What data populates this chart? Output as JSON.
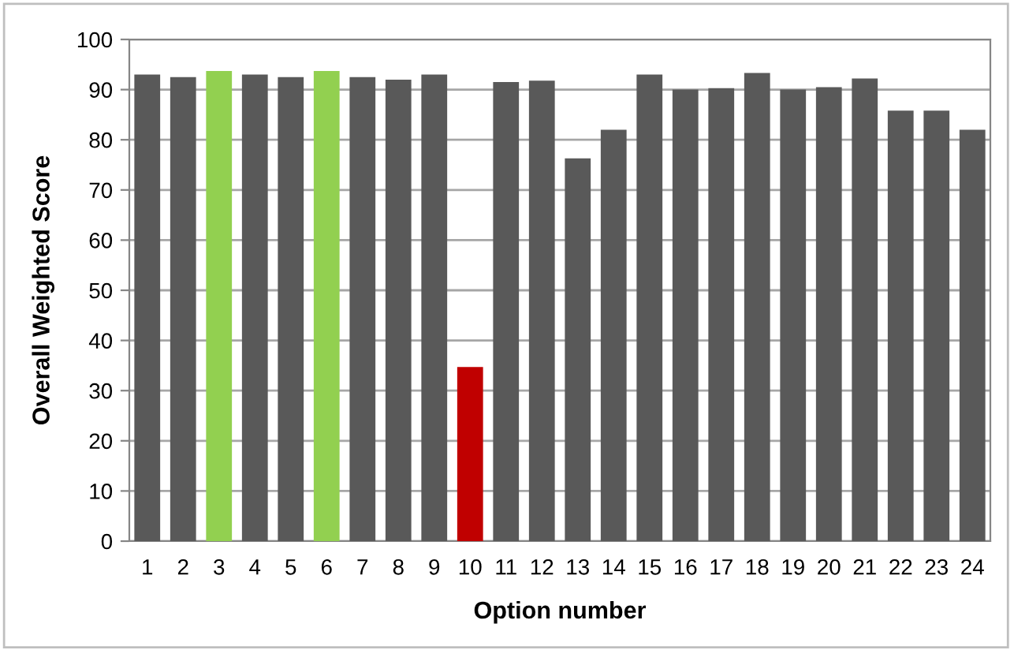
{
  "chart_data": {
    "type": "bar",
    "xlabel": "Option number",
    "ylabel": "Overall Weighted Score",
    "categories": [
      "1",
      "2",
      "3",
      "4",
      "5",
      "6",
      "7",
      "8",
      "9",
      "10",
      "11",
      "12",
      "13",
      "14",
      "15",
      "16",
      "17",
      "18",
      "19",
      "20",
      "21",
      "22",
      "23",
      "24"
    ],
    "values": [
      93,
      92.5,
      93.7,
      93,
      92.5,
      93.7,
      92.5,
      92,
      93,
      34.7,
      91.5,
      91.8,
      76.3,
      82,
      93,
      90,
      90.3,
      93.3,
      90,
      90.5,
      92.2,
      85.8,
      85.8,
      82
    ],
    "colors": [
      "#595959",
      "#595959",
      "#92d050",
      "#595959",
      "#595959",
      "#92d050",
      "#595959",
      "#595959",
      "#595959",
      "#c00000",
      "#595959",
      "#595959",
      "#595959",
      "#595959",
      "#595959",
      "#595959",
      "#595959",
      "#595959",
      "#595959",
      "#595959",
      "#595959",
      "#595959",
      "#595959",
      "#595959"
    ],
    "ylim": [
      0,
      100
    ],
    "yticks": [
      0,
      10,
      20,
      30,
      40,
      50,
      60,
      70,
      80,
      90,
      100
    ],
    "grid": "y",
    "legend": false
  }
}
